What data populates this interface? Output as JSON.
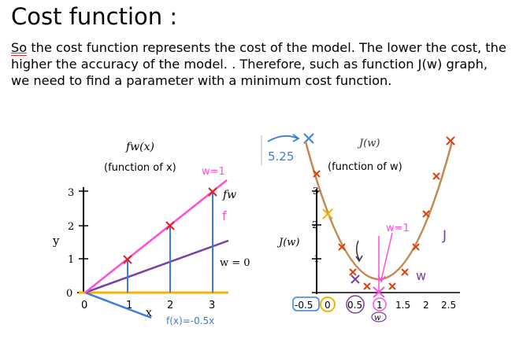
{
  "title": "Cost function :",
  "paragraph_first_word": "So",
  "paragraph_rest": " the cost function represents the cost of the model. The lower the cost, the higher the accuracy of the model. . Therefore, such as function J(w) graph, we need to find a parameter with a minimum cost function.",
  "left_graph": {
    "func_label": "fw(x)",
    "func_sub": "w",
    "func_desc": "(function of x)",
    "y_label": "y",
    "x_label": "x",
    "y_ticks": [
      "0",
      "1",
      "2",
      "3"
    ],
    "x_ticks": [
      "0",
      "1",
      "2",
      "3"
    ],
    "annot_w1": "w=1",
    "annot_fw": "fw",
    "annot_f": "f",
    "annot_w0": "w = 0",
    "annot_fx": "f(x)=-0.5x",
    "colors": {
      "pink": "#ff4fd8",
      "purple": "#7a3ea8",
      "blue": "#3a7de0",
      "yellow": "#f2b400",
      "red": "#e02020"
    }
  },
  "right_graph": {
    "func_label": "J(w)",
    "func_desc": "(function of w)",
    "y_label": "J(w)",
    "x_label": "w",
    "y_ticks": [
      "1",
      "2",
      "3"
    ],
    "x_ticks": [
      "-0.5",
      "0",
      "0.5",
      "1",
      "1.5",
      "2",
      "2.5"
    ],
    "annot_525": "5.25",
    "annot_w1": "w=1",
    "annot_J": "J",
    "annot_w": "w",
    "colors": {
      "curve": "#c08a50",
      "cross": "#e04010",
      "pink": "#ff4fd8",
      "blue": "#3a7de0"
    }
  }
}
